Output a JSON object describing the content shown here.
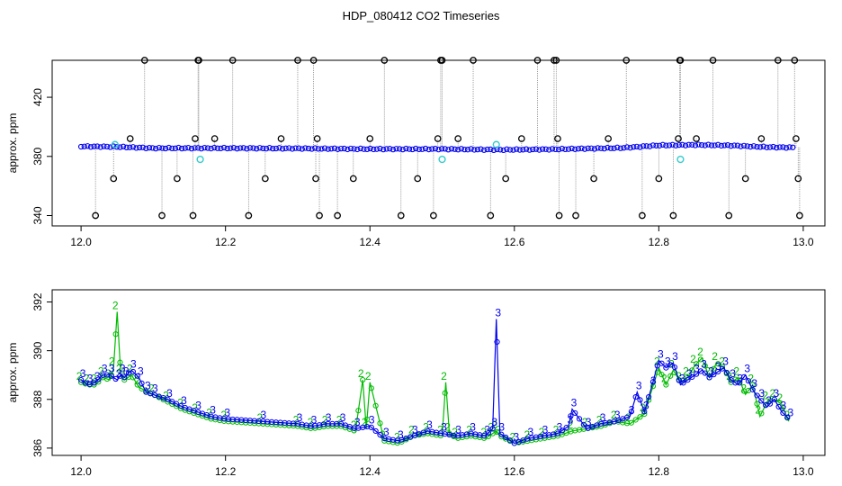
{
  "title": "HDP_080412  CO2 Timeseries",
  "colors": {
    "blue": "#0000ee",
    "green": "#00bb00",
    "cyan": "#33cccc",
    "grey": "#888888",
    "black": "#000000"
  },
  "chart_data": [
    {
      "type": "scatter",
      "ylabel": "approx. ppm",
      "xlabel": "",
      "xlim": [
        11.96,
        13.03
      ],
      "ylim": [
        333,
        445
      ],
      "xticks": [
        "12.0",
        "12.2",
        "12.4",
        "12.6",
        "12.8",
        "13.0"
      ],
      "yticks": [
        "340",
        "380",
        "420"
      ],
      "baseline_series": {
        "name": "",
        "x": [
          12.0,
          12.05,
          12.1,
          12.2,
          12.3,
          12.4,
          12.5,
          12.58,
          12.65,
          12.75,
          12.8,
          12.85,
          12.9,
          12.95,
          12.99
        ],
        "y": [
          386.8,
          386.5,
          385.6,
          385.6,
          385.4,
          385.0,
          385.0,
          384.5,
          384.8,
          385.8,
          387.5,
          387.8,
          387.4,
          386.3,
          386.0
        ]
      },
      "outliers": {
        "x": [
          12.02,
          12.045,
          12.068,
          12.088,
          12.112,
          12.133,
          12.155,
          12.158,
          12.162,
          12.163,
          12.185,
          12.21,
          12.232,
          12.255,
          12.277,
          12.3,
          12.322,
          12.325,
          12.327,
          12.33,
          12.355,
          12.377,
          12.4,
          12.42,
          12.443,
          12.466,
          12.488,
          12.494,
          12.498,
          12.5,
          12.522,
          12.543,
          12.567,
          12.588,
          12.61,
          12.632,
          12.655,
          12.658,
          12.66,
          12.662,
          12.685,
          12.71,
          12.73,
          12.755,
          12.777,
          12.8,
          12.82,
          12.827,
          12.829,
          12.83,
          12.852,
          12.875,
          12.897,
          12.92,
          12.942,
          12.965,
          12.988,
          12.99,
          12.993,
          12.995
        ],
        "y": [
          340,
          365,
          392,
          445,
          340,
          365,
          340,
          392,
          445,
          445,
          392,
          445,
          340,
          365,
          392,
          445,
          445,
          365,
          392,
          340,
          340,
          365,
          392,
          445,
          340,
          365,
          340,
          392,
          445,
          445,
          392,
          445,
          340,
          365,
          392,
          445,
          445,
          445,
          392,
          340,
          340,
          365,
          392,
          445,
          340,
          365,
          340,
          392,
          445,
          445,
          392,
          445,
          340,
          365,
          392,
          445,
          445,
          392,
          365,
          340
        ]
      },
      "cyan_points": {
        "x": [
          12.047,
          12.165,
          12.5,
          12.575,
          12.83
        ],
        "y": [
          388,
          378,
          378,
          388,
          378
        ]
      }
    },
    {
      "type": "line",
      "ylabel": "approx. ppm",
      "xlabel": "",
      "xlim": [
        11.96,
        13.03
      ],
      "ylim": [
        385.7,
        392.5
      ],
      "xticks": [
        "12.0",
        "12.2",
        "12.4",
        "12.6",
        "12.8",
        "13.0"
      ],
      "yticks": [
        "386",
        "388",
        "390",
        "392"
      ],
      "series": [
        {
          "name": "",
          "marker": "3",
          "x": [
            12.0,
            12.01,
            12.02,
            12.03,
            12.04,
            12.05,
            12.055,
            12.06,
            12.07,
            12.08,
            12.09,
            12.1,
            12.12,
            12.14,
            12.16,
            12.18,
            12.2,
            12.25,
            12.3,
            12.32,
            12.34,
            12.36,
            12.38,
            12.4,
            12.42,
            12.44,
            12.46,
            12.48,
            12.5,
            12.52,
            12.54,
            12.56,
            12.57,
            12.575,
            12.58,
            12.6,
            12.62,
            12.64,
            12.66,
            12.675,
            12.68,
            12.7,
            12.72,
            12.74,
            12.76,
            12.77,
            12.78,
            12.79,
            12.8,
            12.81,
            12.82,
            12.83,
            12.84,
            12.85,
            12.86,
            12.87,
            12.88,
            12.89,
            12.9,
            12.91,
            12.92,
            12.93,
            12.94,
            12.95,
            12.96,
            12.97,
            12.98
          ],
          "y": [
            388.8,
            388.6,
            388.7,
            389.0,
            389.0,
            388.8,
            389.0,
            388.9,
            389.2,
            388.9,
            388.3,
            388.2,
            388.0,
            387.7,
            387.5,
            387.3,
            387.2,
            387.1,
            387.0,
            386.9,
            387.0,
            387.0,
            386.8,
            386.9,
            386.4,
            386.3,
            386.5,
            386.7,
            386.6,
            386.5,
            386.6,
            386.5,
            386.8,
            391.3,
            386.6,
            386.2,
            386.4,
            386.5,
            386.6,
            386.9,
            387.6,
            386.8,
            387.0,
            387.1,
            387.3,
            388.3,
            387.5,
            388.5,
            389.6,
            389.3,
            389.5,
            388.6,
            388.8,
            389.0,
            389.2,
            388.9,
            389.1,
            389.3,
            388.8,
            388.6,
            389.0,
            388.4,
            388.0,
            387.7,
            388.0,
            387.5,
            387.2
          ]
        },
        {
          "name": "",
          "marker": "2",
          "x": [
            12.0,
            12.01,
            12.02,
            12.03,
            12.04,
            12.045,
            12.05,
            12.055,
            12.06,
            12.07,
            12.08,
            12.1,
            12.12,
            12.14,
            12.16,
            12.18,
            12.2,
            12.25,
            12.3,
            12.32,
            12.34,
            12.36,
            12.38,
            12.39,
            12.395,
            12.4,
            12.42,
            12.44,
            12.46,
            12.48,
            12.5,
            12.505,
            12.51,
            12.52,
            12.54,
            12.56,
            12.57,
            12.575,
            12.58,
            12.6,
            12.62,
            12.64,
            12.66,
            12.68,
            12.7,
            12.72,
            12.74,
            12.76,
            12.78,
            12.8,
            12.81,
            12.82,
            12.83,
            12.84,
            12.85,
            12.86,
            12.87,
            12.88,
            12.89,
            12.9,
            12.91,
            12.92,
            12.93,
            12.94,
            12.95,
            12.96,
            12.97,
            12.98
          ],
          "y": [
            388.7,
            388.6,
            388.6,
            388.9,
            388.8,
            389.3,
            391.6,
            389.0,
            388.8,
            389.0,
            388.5,
            388.2,
            387.9,
            387.6,
            387.4,
            387.2,
            387.1,
            387.0,
            386.9,
            386.8,
            386.9,
            386.9,
            386.7,
            388.8,
            386.8,
            388.7,
            386.3,
            386.2,
            386.5,
            386.6,
            386.5,
            388.7,
            386.6,
            386.4,
            386.5,
            386.4,
            386.6,
            386.7,
            386.5,
            386.2,
            386.3,
            386.4,
            386.5,
            386.7,
            386.8,
            386.9,
            387.1,
            387.0,
            387.4,
            389.3,
            388.6,
            389.2,
            388.7,
            388.9,
            389.4,
            389.7,
            388.9,
            389.5,
            389.3,
            388.7,
            388.9,
            388.2,
            388.6,
            387.3,
            387.9,
            388.0,
            387.8,
            387.1
          ]
        }
      ]
    }
  ]
}
